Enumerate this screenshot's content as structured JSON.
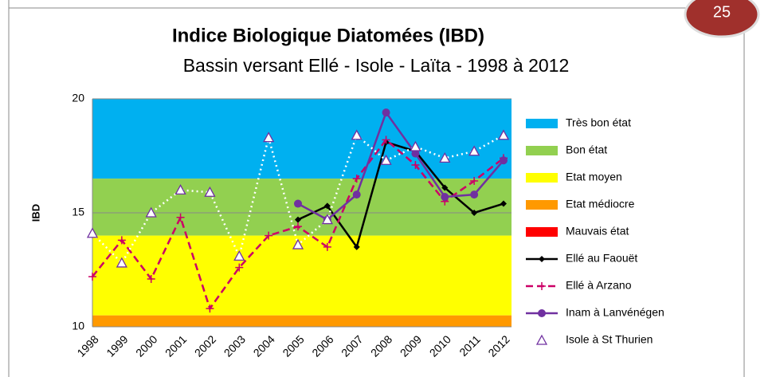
{
  "page_number": "25",
  "chart_data": {
    "type": "line",
    "title": "Indice Biologique Diatomées (IBD)",
    "subtitle": "Bassin versant Ellé - Isole - Laïta - 1998 à 2012",
    "ylabel": "IBD",
    "categories": [
      "1998",
      "1999",
      "2000",
      "2001",
      "2002",
      "2003",
      "2004",
      "2005",
      "2006",
      "2007",
      "2008",
      "2009",
      "2010",
      "2011",
      "2012"
    ],
    "ylim": [
      10,
      20
    ],
    "yticks": [
      10,
      15,
      20
    ],
    "grid": true,
    "bands": [
      {
        "name": "Très bon état",
        "color": "#00b0f0",
        "from": 16.5,
        "to": 20
      },
      {
        "name": "Bon état",
        "color": "#92d050",
        "from": 14,
        "to": 16.5
      },
      {
        "name": "Etat moyen",
        "color": "#ffff00",
        "from": 10.5,
        "to": 14
      },
      {
        "name": "Etat médiocre",
        "color": "#ff9900",
        "from": 10,
        "to": 10.5
      },
      {
        "name": "Mauvais état",
        "color": "#ff0000",
        "from": 0,
        "to": 10
      }
    ],
    "series": [
      {
        "name": "Ellé au Faouët",
        "color": "#000000",
        "style": "solid",
        "marker": "diamond",
        "values": [
          null,
          null,
          null,
          null,
          null,
          null,
          null,
          14.7,
          15.3,
          13.5,
          18.1,
          17.7,
          16.1,
          15.0,
          15.4
        ]
      },
      {
        "name": "Ellé à Arzano",
        "color": "#cc0066",
        "style": "dashed",
        "marker": "plus",
        "values": [
          12.2,
          13.8,
          12.1,
          14.8,
          10.8,
          12.6,
          14.0,
          14.4,
          13.5,
          16.5,
          18.2,
          17.1,
          15.5,
          16.4,
          17.4
        ]
      },
      {
        "name": "Inam à Lanvénégen",
        "color": "#7030a0",
        "style": "solid",
        "marker": "circle",
        "values": [
          null,
          null,
          null,
          null,
          null,
          null,
          null,
          15.4,
          14.7,
          15.8,
          19.4,
          17.6,
          15.7,
          15.8,
          17.3
        ]
      },
      {
        "name": "Isole à St Thurien",
        "color": "#ffffff",
        "marker_color": "#7030a0",
        "style": "dotted",
        "marker": "triangle",
        "values": [
          14.1,
          12.8,
          15.0,
          16.0,
          15.9,
          13.1,
          18.3,
          13.6,
          14.7,
          18.4,
          17.3,
          17.9,
          17.4,
          17.7,
          18.4
        ]
      }
    ]
  }
}
